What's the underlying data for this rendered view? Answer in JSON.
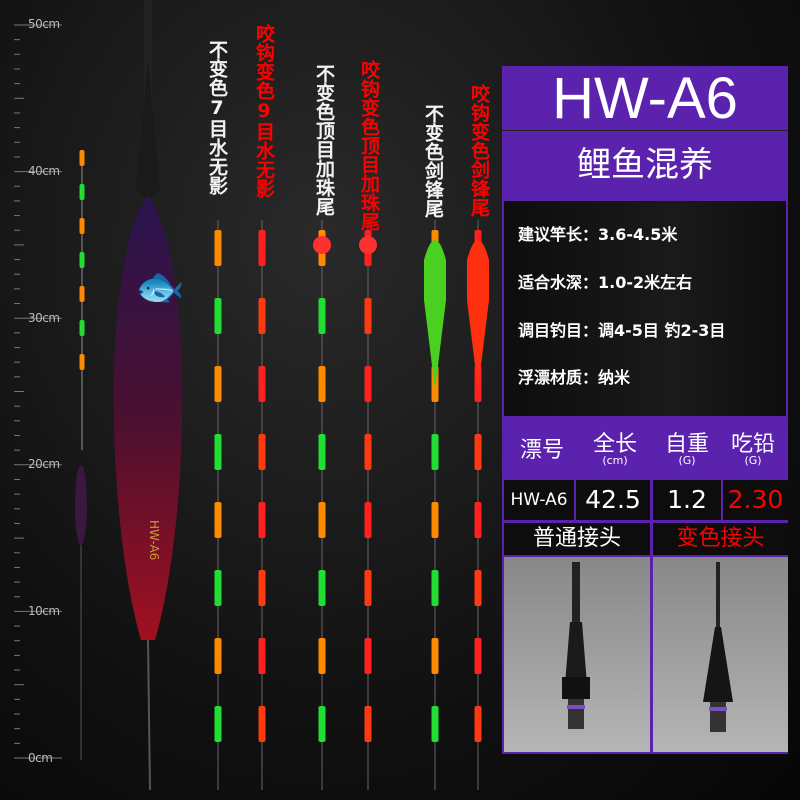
{
  "ruler": {
    "labels": [
      "50cm",
      "40cm",
      "30cm",
      "20cm",
      "10cm",
      "0cm"
    ]
  },
  "float_labels": [
    {
      "text": "不变色7目水无影",
      "color": "white"
    },
    {
      "text": "咬钩变色9目水无影",
      "color": "red"
    },
    {
      "text": "不变色顶目加珠尾",
      "color": "white"
    },
    {
      "text": "咬钩变色顶目加珠尾",
      "color": "red"
    },
    {
      "text": "不变色剑锋尾",
      "color": "white"
    },
    {
      "text": "咬钩变色剑锋尾",
      "color": "red"
    }
  ],
  "float_body_text": "HW-A6",
  "panel": {
    "model": "HW-A6",
    "type": "鲤鱼混养",
    "specs": [
      "建议竿长：3.6-4.5米",
      "适合水深：1.0-2米左右",
      "调目钓目：调4-5目 钓2-3目",
      "浮漂材质：纳米"
    ],
    "table": {
      "headers": [
        {
          "label": "漂号",
          "unit": ""
        },
        {
          "label": "全长",
          "unit": "(cm)"
        },
        {
          "label": "自重",
          "unit": "(G)"
        },
        {
          "label": "吃铅",
          "unit": "(G)"
        }
      ],
      "row": [
        "HW-A6",
        "42.5",
        "1.2",
        "2.30"
      ]
    },
    "connectors": [
      "普通接头",
      "变色接头"
    ],
    "colors": {
      "panel": "#5b22ad",
      "highlight": "#ff0000"
    }
  }
}
